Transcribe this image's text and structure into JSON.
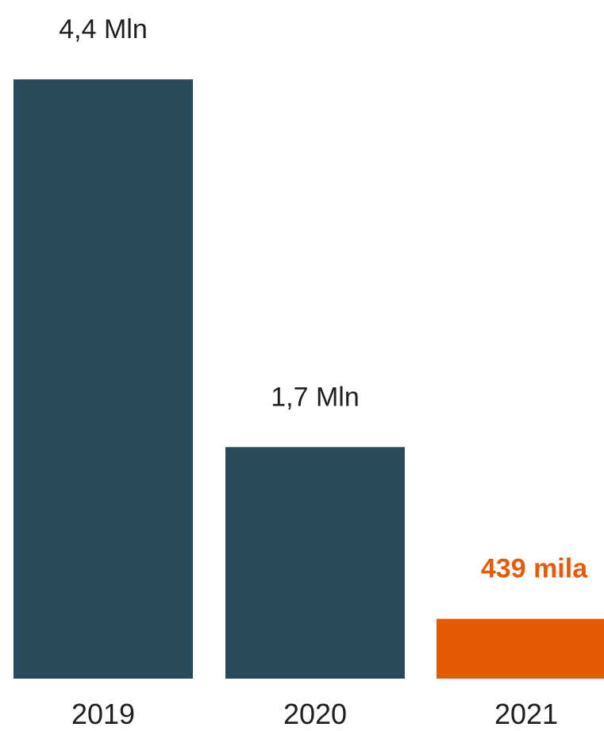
{
  "chart_data": {
    "type": "bar",
    "categories": [
      "2019",
      "2020",
      "2021"
    ],
    "values": [
      4.4,
      1.7,
      0.439
    ],
    "unit": "million",
    "data_labels": [
      "4,4 Mln",
      "1,7 Mln",
      "439 mila"
    ],
    "ylim": [
      0,
      4.4
    ],
    "grid": false,
    "axes_visible": false,
    "highlight_index": 2,
    "colors": {
      "bar": "#284a5a",
      "highlight": "#e75a05",
      "label": "#1f1f1f",
      "highlight_label": "#e75a05"
    }
  }
}
